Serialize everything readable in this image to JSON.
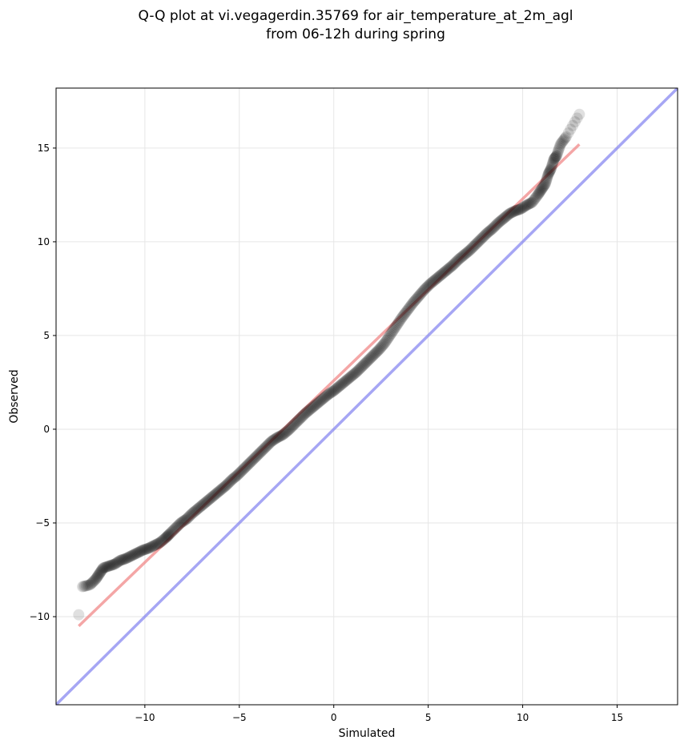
{
  "chart_data": {
    "type": "scatter",
    "title": "Q-Q plot at vi.vegagerdin.35769 for air_temperature_at_2m_agl",
    "subtitle": "from 06-12h during spring",
    "xlabel": "Simulated",
    "ylabel": "Observed",
    "xlim": [
      -14.7,
      18.2
    ],
    "ylim": [
      -14.7,
      18.2
    ],
    "x_ticks": [
      -10,
      -5,
      0,
      5,
      10,
      15
    ],
    "y_ticks": [
      -10,
      -5,
      0,
      5,
      10,
      15
    ],
    "x_tick_labels": [
      "−10",
      "−5",
      "0",
      "5",
      "10",
      "15"
    ],
    "y_tick_labels": [
      "−10",
      "−5",
      "0",
      "5",
      "10",
      "15"
    ],
    "grid": true,
    "legend": "none",
    "series": [
      {
        "kind": "quantiles",
        "color": "#000000",
        "opacity": 0.12,
        "points": [
          [
            -13.5,
            -9.9
          ],
          [
            -13.3,
            -8.4
          ],
          [
            -12.9,
            -8.3
          ],
          [
            -12.6,
            -8.0
          ],
          [
            -12.4,
            -7.7
          ],
          [
            -12.2,
            -7.4
          ],
          [
            -11.9,
            -7.3
          ],
          [
            -11.6,
            -7.2
          ],
          [
            -11.3,
            -7.0
          ],
          [
            -11.0,
            -6.9
          ],
          [
            -10.7,
            -6.75
          ],
          [
            -10.4,
            -6.6
          ],
          [
            -10.1,
            -6.45
          ],
          [
            -9.8,
            -6.35
          ],
          [
            -9.5,
            -6.2
          ],
          [
            -9.2,
            -6.05
          ],
          [
            -8.9,
            -5.8
          ],
          [
            -8.7,
            -5.6
          ],
          [
            -8.4,
            -5.3
          ],
          [
            -8.1,
            -5.0
          ],
          [
            -7.8,
            -4.8
          ],
          [
            -7.5,
            -4.5
          ],
          [
            -7.2,
            -4.25
          ],
          [
            -6.9,
            -4.0
          ],
          [
            -6.6,
            -3.75
          ],
          [
            -6.3,
            -3.5
          ],
          [
            -6.0,
            -3.25
          ],
          [
            -5.7,
            -3.0
          ],
          [
            -5.4,
            -2.7
          ],
          [
            -5.1,
            -2.45
          ],
          [
            -4.8,
            -2.15
          ],
          [
            -4.5,
            -1.85
          ],
          [
            -4.2,
            -1.55
          ],
          [
            -3.9,
            -1.25
          ],
          [
            -3.6,
            -0.95
          ],
          [
            -3.3,
            -0.65
          ],
          [
            -3.0,
            -0.45
          ],
          [
            -2.7,
            -0.3
          ],
          [
            -2.4,
            -0.05
          ],
          [
            -2.1,
            0.25
          ],
          [
            -1.8,
            0.55
          ],
          [
            -1.5,
            0.85
          ],
          [
            -1.2,
            1.1
          ],
          [
            -0.9,
            1.35
          ],
          [
            -0.6,
            1.6
          ],
          [
            -0.3,
            1.85
          ],
          [
            0.0,
            2.05
          ],
          [
            0.3,
            2.3
          ],
          [
            0.6,
            2.55
          ],
          [
            0.9,
            2.8
          ],
          [
            1.2,
            3.05
          ],
          [
            1.5,
            3.35
          ],
          [
            1.8,
            3.65
          ],
          [
            2.1,
            3.95
          ],
          [
            2.4,
            4.25
          ],
          [
            2.7,
            4.6
          ],
          [
            3.0,
            5.05
          ],
          [
            3.3,
            5.5
          ],
          [
            3.6,
            5.95
          ],
          [
            3.9,
            6.35
          ],
          [
            4.2,
            6.75
          ],
          [
            4.5,
            7.1
          ],
          [
            4.8,
            7.45
          ],
          [
            5.1,
            7.75
          ],
          [
            5.4,
            8.0
          ],
          [
            5.7,
            8.25
          ],
          [
            6.0,
            8.5
          ],
          [
            6.3,
            8.75
          ],
          [
            6.6,
            9.05
          ],
          [
            6.9,
            9.3
          ],
          [
            7.2,
            9.55
          ],
          [
            7.5,
            9.85
          ],
          [
            7.8,
            10.15
          ],
          [
            8.1,
            10.45
          ],
          [
            8.4,
            10.7
          ],
          [
            8.7,
            11.0
          ],
          [
            9.0,
            11.25
          ],
          [
            9.3,
            11.5
          ],
          [
            9.6,
            11.65
          ],
          [
            9.9,
            11.75
          ],
          [
            10.2,
            11.95
          ],
          [
            10.5,
            12.1
          ],
          [
            10.8,
            12.5
          ],
          [
            11.0,
            12.8
          ],
          [
            11.2,
            13.1
          ],
          [
            11.35,
            13.6
          ],
          [
            11.5,
            13.9
          ],
          [
            11.65,
            14.4
          ],
          [
            11.8,
            14.6
          ],
          [
            12.0,
            15.2
          ],
          [
            12.3,
            15.6
          ],
          [
            13.0,
            16.8
          ]
        ]
      },
      {
        "kind": "fit-line",
        "color": "#f08080",
        "x": [
          -13.5,
          13.0
        ],
        "y": [
          -10.5,
          15.2
        ]
      },
      {
        "kind": "reference-line",
        "color": "#8080f0",
        "x": [
          -14.7,
          18.2
        ],
        "y": [
          -14.7,
          18.2
        ]
      }
    ]
  }
}
